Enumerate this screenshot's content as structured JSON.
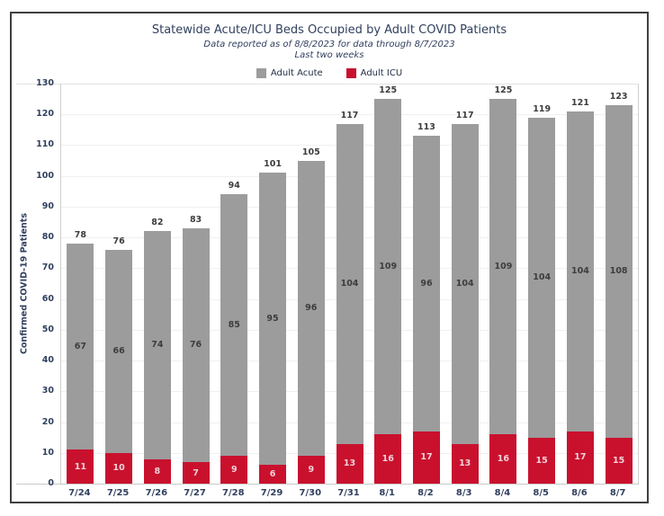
{
  "chart_data": {
    "type": "bar",
    "stacked": true,
    "title": "Statewide Acute/ICU Beds Occupied by Adult COVID Patients",
    "subtitle": "Data reported as of 8/8/2023 for data through 8/7/2023",
    "subtitle2": "Last two weeks",
    "ylabel": "Confirmed COVID-19 Patients",
    "xlabel": "",
    "ylim": [
      0,
      130
    ],
    "ytick_step": 10,
    "grid": true,
    "legend_position": "top",
    "categories": [
      "7/24",
      "7/25",
      "7/26",
      "7/27",
      "7/28",
      "7/29",
      "7/30",
      "7/31",
      "8/1",
      "8/2",
      "8/3",
      "8/4",
      "8/5",
      "8/6",
      "8/7"
    ],
    "series": [
      {
        "name": "Adult ICU",
        "color": "#c9112e",
        "label_color": "#f2d3d8",
        "values": [
          11,
          10,
          8,
          7,
          9,
          6,
          9,
          13,
          16,
          17,
          13,
          16,
          15,
          17,
          15
        ]
      },
      {
        "name": "Adult Acute",
        "color": "#9c9c9c",
        "label_color": "#3d3d3d",
        "values": [
          67,
          66,
          74,
          76,
          85,
          95,
          96,
          104,
          109,
          96,
          104,
          109,
          104,
          104,
          108
        ]
      }
    ],
    "totals": [
      78,
      76,
      82,
      83,
      94,
      101,
      105,
      117,
      125,
      113,
      117,
      125,
      119,
      121,
      123
    ]
  },
  "legend": [
    {
      "label": "Adult Acute",
      "color": "#9c9c9c"
    },
    {
      "label": "Adult ICU",
      "color": "#c9112e"
    }
  ],
  "colors": {
    "title_text": "#31405f",
    "axis_text": "#31405f",
    "total_label": "#3d3d3d",
    "gridline": "#f0f0f0",
    "axis_line": "#d0d0d0",
    "frame_border": "#3f3f3f"
  }
}
